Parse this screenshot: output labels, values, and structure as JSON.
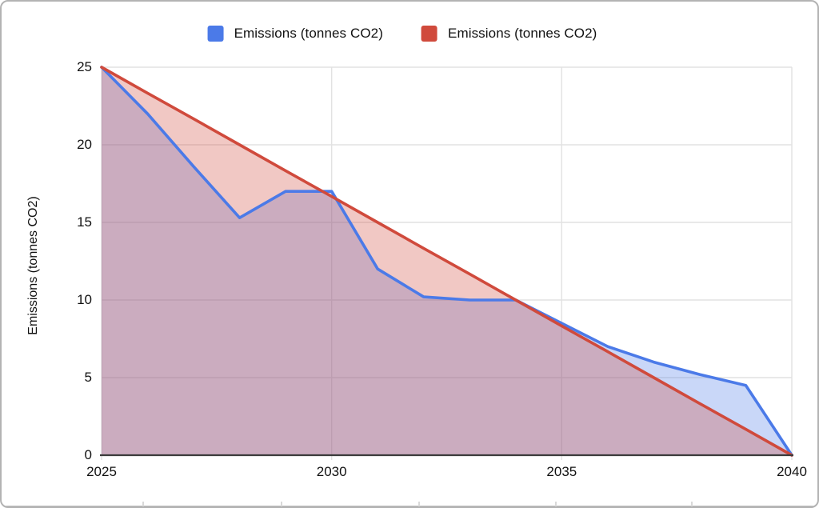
{
  "legend": {
    "items": [
      {
        "label": "Emissions (tonnes CO2)",
        "color": "#4B7AE8"
      },
      {
        "label": "Emissions (tonnes CO2)",
        "color": "#D04A3C"
      }
    ]
  },
  "y_axis": {
    "title": "Emissions (tonnes CO2)",
    "ticks": [
      0,
      5,
      10,
      15,
      20,
      25
    ]
  },
  "x_axis": {
    "ticks": [
      2025,
      2030,
      2035,
      2040
    ]
  },
  "chart_data": {
    "type": "area",
    "title": "",
    "xlabel": "",
    "ylabel": "Emissions (tonnes CO2)",
    "x": [
      2025,
      2026,
      2027,
      2028,
      2029,
      2030,
      2031,
      2032,
      2033,
      2034,
      2035,
      2036,
      2037,
      2038,
      2039,
      2040
    ],
    "series": [
      {
        "name": "Emissions (tonnes CO2)",
        "color": "#4B7AE8",
        "fill_opacity": 0.3,
        "values": [
          25,
          22,
          18.6,
          15.3,
          17,
          17,
          12,
          10.2,
          10,
          10,
          8.5,
          7,
          6,
          5.2,
          4.5,
          0
        ]
      },
      {
        "name": "Emissions (tonnes CO2)",
        "color": "#D04A3C",
        "fill_opacity": 0.3,
        "values": [
          25,
          23.33,
          21.67,
          20,
          18.33,
          16.67,
          15,
          13.33,
          11.67,
          10,
          8.33,
          6.67,
          5,
          3.33,
          1.67,
          0
        ]
      }
    ],
    "xlim": [
      2025,
      2040
    ],
    "ylim": [
      0,
      25
    ],
    "grid": true,
    "legend_position": "top",
    "colors": {
      "gridline": "#e2e2e2",
      "axis_line": "#3c3c3c",
      "text": "#111111"
    }
  }
}
